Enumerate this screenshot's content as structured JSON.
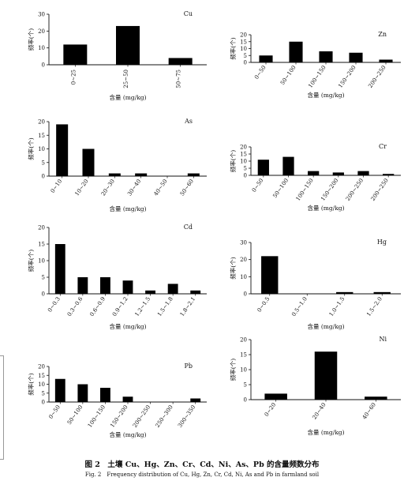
{
  "caption": {
    "cn": "图 2　土壤 Cu、Hg、Zn、Cr、Cd、Ni、As、Pb 的含量频数分布",
    "en": "Fig. 2　Frequency distribution of Cu, Hg, Zn, Cr, Cd, Ni, As and Pb in farmland soil"
  },
  "chart_data": [
    {
      "type": "bar",
      "element": "Cu",
      "ylabel": "频率(个)",
      "xlabel": "含量 (mg/kg)",
      "categories": [
        "0~25",
        "25~50",
        "50~75"
      ],
      "values": [
        12,
        23,
        4
      ],
      "ylim": [
        0,
        30
      ],
      "yticks": [
        0,
        10,
        20,
        30
      ],
      "xlabel_rotation": "vertical"
    },
    {
      "type": "bar",
      "element": "Zn",
      "ylabel": "频率(个)",
      "xlabel": "含量 (mg/kg)",
      "categories": [
        "0~50",
        "50~100",
        "100~150",
        "150~200",
        "200~250"
      ],
      "values": [
        5,
        15,
        8,
        7,
        2
      ],
      "ylim": [
        0,
        20
      ],
      "yticks": [
        0,
        5,
        10,
        15,
        20
      ],
      "xlabel_rotation": "diagonal"
    },
    {
      "type": "bar",
      "element": "As",
      "ylabel": "频率(个)",
      "xlabel": "含量 (mg/kg)",
      "categories": [
        "0~10",
        "10~20",
        "20~30",
        "30~40",
        "40~50",
        "50~60"
      ],
      "values": [
        19,
        10,
        1,
        1,
        0,
        1
      ],
      "ylim": [
        0,
        20
      ],
      "yticks": [
        0,
        5,
        10,
        15,
        20
      ],
      "xlabel_rotation": "diagonal"
    },
    {
      "type": "bar",
      "element": "Cr",
      "ylabel": "频率(个)",
      "xlabel": "含量 (mg/kg)",
      "categories": [
        "0~50",
        "50~100",
        "100~150",
        "150~200",
        "200~250",
        "200~250"
      ],
      "values": [
        11,
        13,
        3,
        2,
        3,
        1
      ],
      "ylim": [
        0,
        20
      ],
      "yticks": [
        0,
        5,
        10,
        15,
        20
      ],
      "xlabel_rotation": "diagonal"
    },
    {
      "type": "bar",
      "element": "Cd",
      "ylabel": "频率(个)",
      "xlabel": "含量 (mg/kg)",
      "categories": [
        "0~0.3",
        "0.3~0.6",
        "0.6~0.9",
        "0.9~1.2",
        "1.2~1.5",
        "1.5~1.8",
        "1.8~2.1"
      ],
      "values": [
        15,
        5,
        5,
        4,
        1,
        3,
        1
      ],
      "ylim": [
        0,
        20
      ],
      "yticks": [
        0,
        5,
        10,
        15,
        20
      ],
      "xlabel_rotation": "diagonal"
    },
    {
      "type": "bar",
      "element": "Hg",
      "ylabel": "频率(个)",
      "xlabel": "含量 (mg/kg)",
      "categories": [
        "0~0.5",
        "0.5~1.0",
        "1.0~1.5",
        "1.5~2.0"
      ],
      "values": [
        22,
        0,
        1,
        1
      ],
      "ylim": [
        0,
        30
      ],
      "yticks": [
        0,
        10,
        20,
        30
      ],
      "xlabel_rotation": "diagonal"
    },
    {
      "type": "bar",
      "element": "Pb",
      "ylabel": "频率(个)",
      "xlabel": "含量 (mg/kg)",
      "categories": [
        "0~50",
        "50~100",
        "100~150",
        "150~200",
        "200~250",
        "250~300",
        "300~350"
      ],
      "values": [
        13,
        10,
        8,
        3,
        0,
        0,
        2
      ],
      "ylim": [
        0,
        20
      ],
      "yticks": [
        0,
        5,
        10,
        15,
        20
      ],
      "xlabel_rotation": "diagonal"
    },
    {
      "type": "bar",
      "element": "Ni",
      "ylabel": "频率(个)",
      "xlabel": "含量 (mg/kg)",
      "categories": [
        "0~20",
        "20~40",
        "40~60"
      ],
      "values": [
        2,
        16,
        1
      ],
      "ylim": [
        0,
        20
      ],
      "yticks": [
        0,
        5,
        10,
        15,
        20
      ],
      "xlabel_rotation": "diagonal"
    }
  ]
}
